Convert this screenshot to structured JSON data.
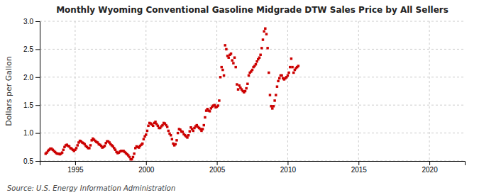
{
  "chart_data": {
    "type": "scatter",
    "title": "Monthly Wyoming Conventional Gasoline Midgrade DTW Sales Price by All Sellers",
    "y_label": "Dollars per Gallon",
    "annotations": [
      "Source: U.S. Energy Information Administration"
    ],
    "color": "#cc0000",
    "marker": "square",
    "grid": true,
    "xlim": [
      1992.5,
      2022.5
    ],
    "ylim": [
      0.5,
      3.0
    ],
    "xticks": [
      1995,
      2000,
      2005,
      2010,
      2015,
      2020
    ],
    "yticks": [
      0.5,
      {
        "value": 1,
        "label": "1.0"
      },
      1.5,
      {
        "value": 2,
        "label": "2.0"
      },
      2.5,
      {
        "value": 3,
        "label": "3.0"
      }
    ],
    "x": [
      1992.917,
      1993.0,
      1993.083,
      1993.167,
      1993.25,
      1993.333,
      1993.417,
      1993.5,
      1993.583,
      1993.667,
      1993.75,
      1993.833,
      1993.917,
      1994.0,
      1994.083,
      1994.167,
      1994.25,
      1994.333,
      1994.417,
      1994.5,
      1994.583,
      1994.667,
      1994.75,
      1994.833,
      1994.917,
      1995.0,
      1995.083,
      1995.167,
      1995.25,
      1995.333,
      1995.417,
      1995.5,
      1995.583,
      1995.667,
      1995.75,
      1995.833,
      1995.917,
      1996.0,
      1996.083,
      1996.167,
      1996.25,
      1996.333,
      1996.417,
      1996.5,
      1996.583,
      1996.667,
      1996.75,
      1996.833,
      1996.917,
      1997.0,
      1997.083,
      1997.167,
      1997.25,
      1997.333,
      1997.417,
      1997.5,
      1997.583,
      1997.667,
      1997.75,
      1997.833,
      1997.917,
      1998.0,
      1998.083,
      1998.167,
      1998.25,
      1998.333,
      1998.417,
      1998.5,
      1998.583,
      1998.667,
      1998.75,
      1998.833,
      1998.917,
      1999.0,
      1999.083,
      1999.167,
      1999.25,
      1999.333,
      1999.417,
      1999.5,
      1999.583,
      1999.667,
      1999.75,
      1999.833,
      1999.917,
      2000.0,
      2000.083,
      2000.167,
      2000.25,
      2000.333,
      2000.417,
      2000.5,
      2000.583,
      2000.667,
      2000.75,
      2000.833,
      2000.917,
      2001.0,
      2001.083,
      2001.167,
      2001.25,
      2001.333,
      2001.417,
      2001.5,
      2001.583,
      2001.667,
      2001.75,
      2001.833,
      2001.917,
      2002.0,
      2002.083,
      2002.167,
      2002.25,
      2002.333,
      2002.417,
      2002.5,
      2002.583,
      2002.667,
      2002.75,
      2002.833,
      2002.917,
      2003.0,
      2003.083,
      2003.167,
      2003.25,
      2003.333,
      2003.417,
      2003.5,
      2003.583,
      2003.667,
      2003.75,
      2003.833,
      2003.917,
      2004.0,
      2004.083,
      2004.167,
      2004.25,
      2004.333,
      2004.417,
      2004.5,
      2004.583,
      2004.667,
      2004.75,
      2004.833,
      2004.917,
      2005.0,
      2005.083,
      2005.167,
      2005.25,
      2005.333,
      2005.417,
      2005.5,
      2005.583,
      2005.667,
      2005.75,
      2005.833,
      2005.917,
      2006.0,
      2006.083,
      2006.167,
      2006.25,
      2006.333,
      2006.417,
      2006.5,
      2006.583,
      2006.667,
      2006.75,
      2006.833,
      2006.917,
      2007.0,
      2007.083,
      2007.167,
      2007.25,
      2007.333,
      2007.417,
      2007.5,
      2007.583,
      2007.667,
      2007.75,
      2007.833,
      2007.917,
      2008.0,
      2008.083,
      2008.167,
      2008.25,
      2008.333,
      2008.417,
      2008.5,
      2008.583,
      2008.667,
      2008.75,
      2008.833,
      2008.917,
      2009.0,
      2009.083,
      2009.167,
      2009.25,
      2009.333,
      2009.417,
      2009.5,
      2009.583,
      2009.667,
      2009.75,
      2009.833,
      2009.917,
      2010.0,
      2010.083,
      2010.167,
      2010.25,
      2010.333,
      2010.417,
      2010.5,
      2010.583,
      2010.667,
      2010.75
    ],
    "values": [
      0.63,
      0.65,
      0.68,
      0.7,
      0.72,
      0.72,
      0.7,
      0.68,
      0.66,
      0.64,
      0.63,
      0.63,
      0.62,
      0.63,
      0.65,
      0.7,
      0.75,
      0.78,
      0.79,
      0.77,
      0.76,
      0.73,
      0.72,
      0.7,
      0.68,
      0.7,
      0.73,
      0.78,
      0.83,
      0.86,
      0.85,
      0.83,
      0.82,
      0.8,
      0.77,
      0.75,
      0.73,
      0.73,
      0.78,
      0.87,
      0.9,
      0.88,
      0.86,
      0.84,
      0.83,
      0.8,
      0.79,
      0.77,
      0.74,
      0.75,
      0.77,
      0.82,
      0.85,
      0.85,
      0.83,
      0.8,
      0.78,
      0.76,
      0.73,
      0.7,
      0.66,
      0.64,
      0.65,
      0.67,
      0.68,
      0.68,
      0.68,
      0.66,
      0.64,
      0.62,
      0.6,
      0.57,
      0.53,
      0.53,
      0.57,
      0.63,
      0.73,
      0.76,
      0.75,
      0.74,
      0.77,
      0.79,
      0.81,
      0.89,
      0.94,
      0.97,
      1.04,
      1.13,
      1.18,
      1.17,
      1.15,
      1.13,
      1.18,
      1.2,
      1.16,
      1.13,
      1.09,
      1.09,
      1.12,
      1.14,
      1.18,
      1.17,
      1.14,
      1.11,
      1.04,
      0.99,
      0.96,
      0.89,
      0.81,
      0.78,
      0.8,
      0.87,
      1.0,
      1.07,
      1.06,
      1.03,
      1.02,
      0.98,
      0.96,
      0.94,
      0.92,
      0.96,
      1.03,
      1.1,
      1.07,
      1.04,
      1.09,
      1.12,
      1.14,
      1.11,
      1.09,
      1.07,
      1.04,
      1.07,
      1.14,
      1.28,
      1.4,
      1.43,
      1.4,
      1.39,
      1.44,
      1.47,
      1.49,
      1.5,
      1.46,
      1.47,
      1.49,
      1.58,
      2.0,
      2.18,
      2.13,
      2.03,
      2.57,
      2.5,
      2.38,
      2.35,
      2.4,
      2.42,
      2.3,
      2.25,
      2.35,
      2.18,
      1.87,
      1.78,
      1.85,
      1.81,
      1.78,
      1.75,
      1.73,
      1.75,
      1.8,
      1.88,
      2.03,
      2.08,
      2.1,
      2.13,
      2.18,
      2.2,
      2.23,
      2.28,
      2.32,
      2.35,
      2.4,
      2.52,
      2.67,
      2.82,
      2.87,
      2.77,
      2.52,
      2.08,
      1.68,
      1.48,
      1.44,
      1.48,
      1.58,
      1.68,
      1.83,
      1.93,
      1.98,
      2.03,
      2.03,
      1.98,
      1.96,
      1.98,
      2.0,
      2.03,
      2.08,
      2.18,
      2.33,
      2.18,
      2.08,
      2.13,
      2.16,
      2.18,
      2.2
    ]
  }
}
